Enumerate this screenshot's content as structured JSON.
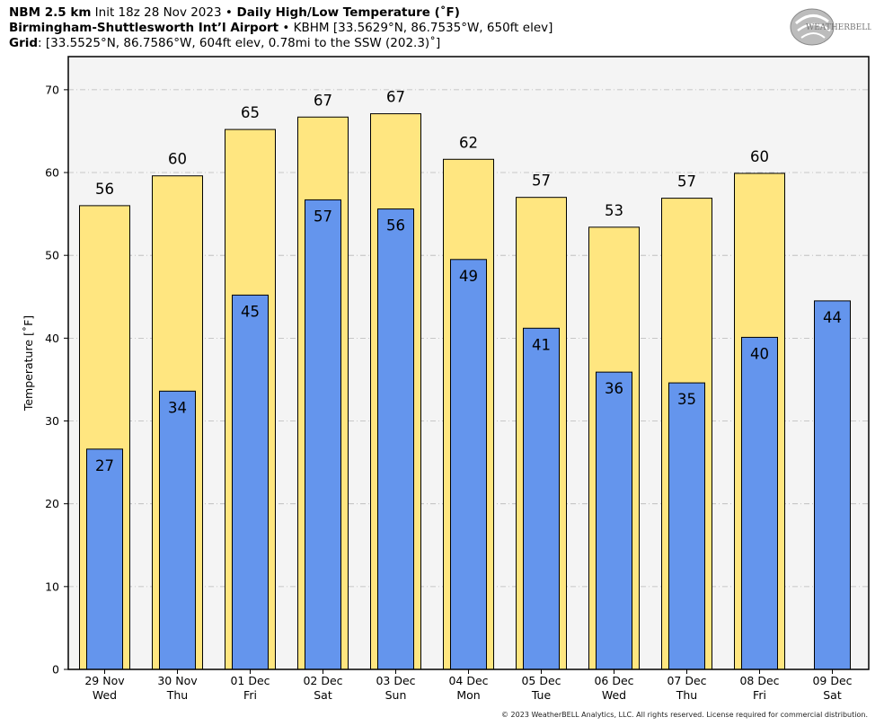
{
  "header": {
    "line1_bold1": "NBM 2.5 km",
    "line1_text1": " Init 18z 28 Nov 2023 ",
    "line1_bullet": "•",
    "line1_bold2": " Daily High/Low Temperature (˚F)",
    "line2_bold": "Birmingham-Shuttlesworth Int’l Airport",
    "line2_bullet": " • ",
    "line2_text": "KBHM [33.5629°N, 86.7535°W, 650ft elev]",
    "line3_bold": "Grid",
    "line3_text": ": [33.5525°N, 86.7586°W, 604ft elev, 0.78mi to the SSW (202.3)˚]"
  },
  "logo": {
    "text": "WEATHERBELL",
    "icon": "weatherbell-logo-icon"
  },
  "footer": {
    "text": "© 2023 WeatherBELL Analytics, LLC. All rights reserved. License required for commercial distribution."
  },
  "colors": {
    "high": "#ffe680",
    "low": "#6495ed",
    "plot_bg": "#f4f4f4",
    "grid": "#b8b8b8"
  },
  "chart_data": {
    "type": "bar",
    "ylabel": "Temperature [˚F]",
    "ylim": [
      0,
      74
    ],
    "yticks": [
      0,
      10,
      20,
      30,
      40,
      50,
      60,
      70
    ],
    "grid": true,
    "categories": [
      [
        "29 Nov",
        "Wed"
      ],
      [
        "30 Nov",
        "Thu"
      ],
      [
        "01 Dec",
        "Fri"
      ],
      [
        "02 Dec",
        "Sat"
      ],
      [
        "03 Dec",
        "Sun"
      ],
      [
        "04 Dec",
        "Mon"
      ],
      [
        "05 Dec",
        "Tue"
      ],
      [
        "06 Dec",
        "Wed"
      ],
      [
        "07 Dec",
        "Thu"
      ],
      [
        "08 Dec",
        "Fri"
      ],
      [
        "09 Dec",
        "Sat"
      ]
    ],
    "series": [
      {
        "key": "high",
        "values": [
          56,
          59.6,
          65.2,
          66.7,
          67.1,
          61.6,
          57,
          53.4,
          56.9,
          59.9,
          null
        ],
        "labels": [
          "56",
          "60",
          "65",
          "67",
          "67",
          "62",
          "57",
          "53",
          "57",
          "60",
          null
        ]
      },
      {
        "key": "low",
        "values": [
          26.6,
          33.6,
          45.2,
          56.7,
          55.6,
          49.5,
          41.2,
          35.9,
          34.6,
          40.1,
          44.5
        ],
        "labels": [
          "27",
          "34",
          "45",
          "57",
          "56",
          "49",
          "41",
          "36",
          "35",
          "40",
          "44"
        ]
      }
    ]
  }
}
